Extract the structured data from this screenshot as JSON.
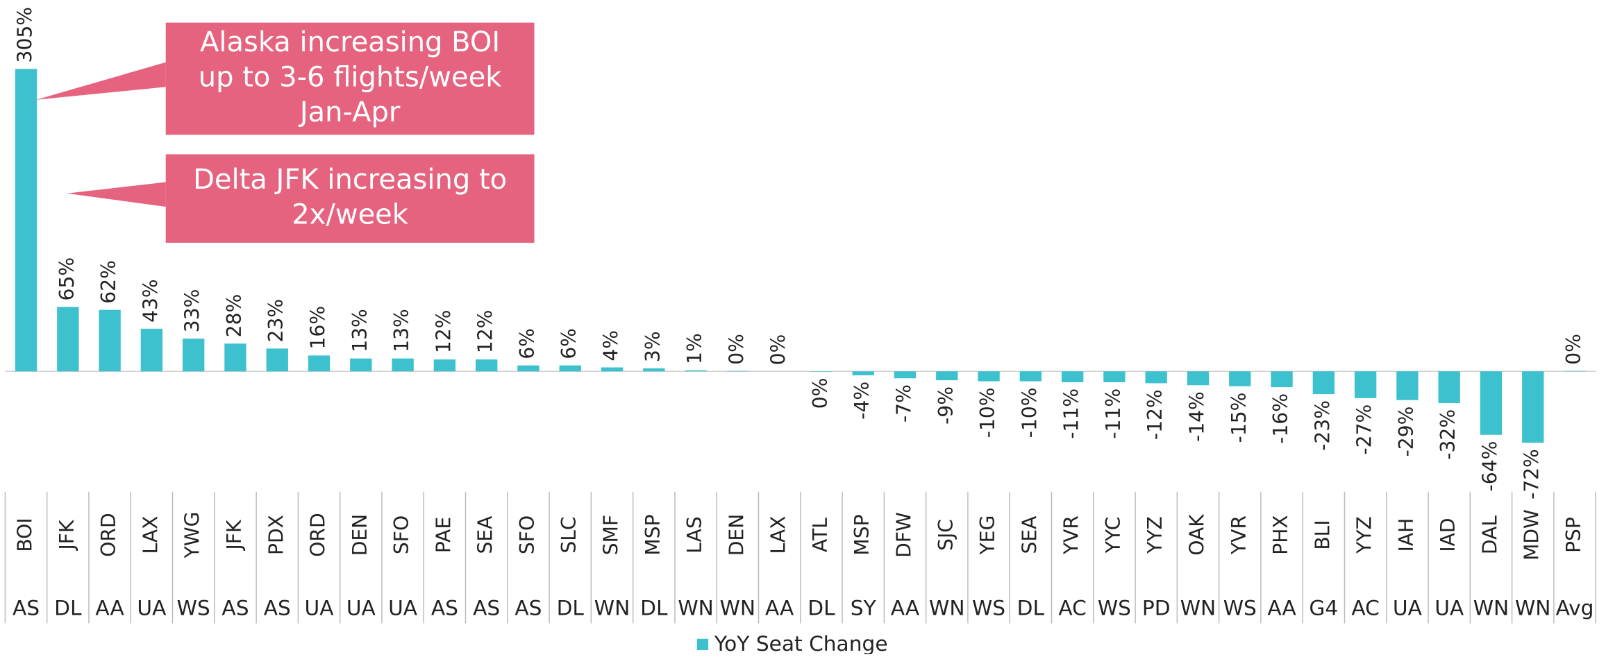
{
  "chart_data": {
    "type": "bar",
    "categories": [
      [
        "BOI",
        "AS"
      ],
      [
        "JFK",
        "DL"
      ],
      [
        "ORD",
        "AA"
      ],
      [
        "LAX",
        "UA"
      ],
      [
        "YWG",
        "WS"
      ],
      [
        "JFK",
        "AS"
      ],
      [
        "PDX",
        "AS"
      ],
      [
        "ORD",
        "UA"
      ],
      [
        "DEN",
        "UA"
      ],
      [
        "SFO",
        "UA"
      ],
      [
        "PAE",
        "AS"
      ],
      [
        "SEA",
        "AS"
      ],
      [
        "SFO",
        "AS"
      ],
      [
        "SLC",
        "DL"
      ],
      [
        "SMF",
        "WN"
      ],
      [
        "MSP",
        "DL"
      ],
      [
        "LAS",
        "WN"
      ],
      [
        "DEN",
        "WN"
      ],
      [
        "LAX",
        "AA"
      ],
      [
        "ATL",
        "DL"
      ],
      [
        "MSP",
        "SY"
      ],
      [
        "DFW",
        "AA"
      ],
      [
        "SJC",
        "WN"
      ],
      [
        "YEG",
        "WS"
      ],
      [
        "SEA",
        "DL"
      ],
      [
        "YVR",
        "AC"
      ],
      [
        "YYC",
        "WS"
      ],
      [
        "YYZ",
        "PD"
      ],
      [
        "OAK",
        "WN"
      ],
      [
        "YVR",
        "WS"
      ],
      [
        "PHX",
        "AA"
      ],
      [
        "BLI",
        "G4"
      ],
      [
        "YYZ",
        "AC"
      ],
      [
        "IAH",
        "UA"
      ],
      [
        "IAD",
        "UA"
      ],
      [
        "DAL",
        "WN"
      ],
      [
        "MDW",
        "WN"
      ],
      [
        "PSP",
        "Avg"
      ]
    ],
    "series": [
      {
        "name": "YoY Seat Change",
        "color": "#3ec1cf",
        "values": [
          305,
          65,
          62,
          43,
          33,
          28,
          23,
          16,
          13,
          13,
          12,
          12,
          6,
          6,
          4,
          3,
          1,
          0.4,
          0,
          -0.3,
          -4,
          -7,
          -9,
          -10,
          -10,
          -11,
          -11,
          -12,
          -14,
          -15,
          -16,
          -23,
          -27,
          -29,
          -32,
          -64,
          -72,
          0.4
        ],
        "value_labels": [
          "305%",
          "65%",
          "62%",
          "43%",
          "33%",
          "28%",
          "23%",
          "16%",
          "13%",
          "13%",
          "12%",
          "12%",
          "6%",
          "6%",
          "4%",
          "3%",
          "1%",
          "0%",
          "0%",
          "0%",
          "-4%",
          "-7%",
          "-9%",
          "-10%",
          "-10%",
          "-11%",
          "-11%",
          "-12%",
          "-14%",
          "-15%",
          "-16%",
          "-23%",
          "-27%",
          "-29%",
          "-32%",
          "-64%",
          "-72%",
          "0%"
        ]
      }
    ],
    "annotations": [
      {
        "lines": [
          "Alaska increasing BOI",
          "up to 3-6 flights/week",
          "Jan-Apr"
        ],
        "color": "#e5637f"
      },
      {
        "lines": [
          "Delta JFK increasing to",
          "2x/week"
        ],
        "color": "#e5637f"
      }
    ],
    "legend": "bottom"
  }
}
